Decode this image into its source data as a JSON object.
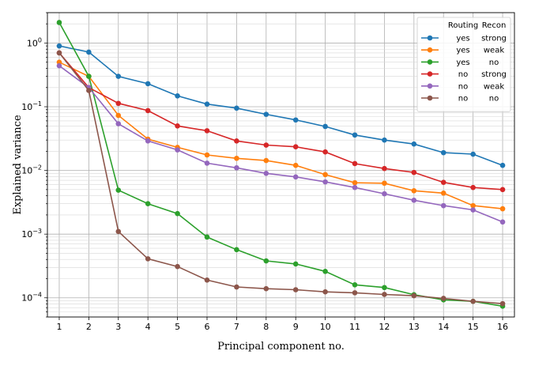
{
  "chart_data": {
    "type": "line",
    "xlabel": "Principal component no.",
    "ylabel": "Explained variance",
    "yscale": "log",
    "xlim": [
      0.6,
      16.4
    ],
    "ylim": [
      5e-05,
      3.0
    ],
    "x": [
      1,
      2,
      3,
      4,
      5,
      6,
      7,
      8,
      9,
      10,
      11,
      12,
      13,
      14,
      15,
      16
    ],
    "x_ticks": [
      "1",
      "2",
      "3",
      "4",
      "5",
      "6",
      "7",
      "8",
      "9",
      "10",
      "11",
      "12",
      "13",
      "14",
      "15",
      "16"
    ],
    "y_ticks": [
      {
        "value": 0.0001,
        "base": "10",
        "exp": "−4"
      },
      {
        "value": 0.001,
        "base": "10",
        "exp": "−3"
      },
      {
        "value": 0.01,
        "base": "10",
        "exp": "−2"
      },
      {
        "value": 0.1,
        "base": "10",
        "exp": "−1"
      },
      {
        "value": 1,
        "base": "10",
        "exp": "0"
      }
    ],
    "grid": true,
    "legend": {
      "placement": "top-right",
      "header_routing": "Routing",
      "header_recon": "Recon"
    },
    "series": [
      {
        "routing": "yes",
        "recon": "strong",
        "color": "#1f77b4",
        "values": [
          0.9,
          0.72,
          0.3,
          0.23,
          0.148,
          0.11,
          0.095,
          0.076,
          0.062,
          0.049,
          0.036,
          0.03,
          0.026,
          0.019,
          0.018,
          0.012
        ]
      },
      {
        "routing": "yes",
        "recon": "weak",
        "color": "#ff7f0e",
        "values": [
          0.5,
          0.3,
          0.073,
          0.031,
          0.023,
          0.0175,
          0.0155,
          0.0143,
          0.012,
          0.0086,
          0.0064,
          0.0063,
          0.0048,
          0.0044,
          0.0028,
          0.0025
        ]
      },
      {
        "routing": "yes",
        "recon": "no",
        "color": "#2ca02c",
        "values": [
          2.1,
          0.3,
          0.0049,
          0.003,
          0.0021,
          0.0009,
          0.00057,
          0.00038,
          0.00034,
          0.00026,
          0.00016,
          0.000145,
          0.000112,
          9.3e-05,
          8.8e-05,
          7.4e-05
        ]
      },
      {
        "routing": "no",
        "recon": "strong",
        "color": "#d62728",
        "values": [
          0.7,
          0.2,
          0.113,
          0.087,
          0.05,
          0.042,
          0.029,
          0.025,
          0.0235,
          0.0195,
          0.0128,
          0.0107,
          0.0093,
          0.0065,
          0.0054,
          0.005
        ]
      },
      {
        "routing": "no",
        "recon": "weak",
        "color": "#9467bd",
        "values": [
          0.44,
          0.2,
          0.054,
          0.029,
          0.021,
          0.013,
          0.011,
          0.009,
          0.0079,
          0.0066,
          0.0054,
          0.0043,
          0.0034,
          0.0028,
          0.0024,
          0.00155
        ]
      },
      {
        "routing": "no",
        "recon": "no",
        "color": "#8c564b",
        "values": [
          0.7,
          0.18,
          0.0011,
          0.00041,
          0.00031,
          0.00019,
          0.000148,
          0.000139,
          0.000134,
          0.000124,
          0.00012,
          0.000113,
          0.000108,
          9.8e-05,
          8.8e-05,
          8.1e-05
        ]
      }
    ]
  }
}
